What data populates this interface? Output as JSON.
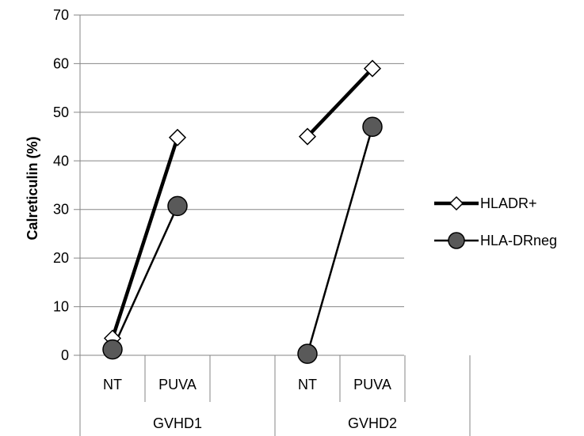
{
  "chart_data": {
    "type": "line",
    "title": "",
    "xlabel": "",
    "ylabel": "Calreticulin (%)",
    "ylim": [
      0,
      70
    ],
    "yticks": [
      0,
      10,
      20,
      30,
      40,
      50,
      60,
      70
    ],
    "grid": true,
    "legend_position": "right",
    "groups": [
      {
        "label": "GVHD1",
        "categories": [
          "NT",
          "PUVA"
        ]
      },
      {
        "label": "GVHD2",
        "categories": [
          "NT",
          "PUVA"
        ]
      }
    ],
    "series": [
      {
        "name": "HLADR+",
        "marker": "diamond",
        "marker_fill": "#ffffff",
        "line_color": "#000000",
        "points": [
          {
            "group": "GVHD1",
            "category": "NT",
            "value": 3.5
          },
          {
            "group": "GVHD1",
            "category": "PUVA",
            "value": 44.8
          },
          {
            "group": "GVHD2",
            "category": "NT",
            "value": 45
          },
          {
            "group": "GVHD2",
            "category": "PUVA",
            "value": 59
          }
        ]
      },
      {
        "name": "HLA-DRneg",
        "marker": "circle",
        "marker_fill": "#595959",
        "line_color": "#000000",
        "points": [
          {
            "group": "GVHD1",
            "category": "NT",
            "value": 1.2
          },
          {
            "group": "GVHD1",
            "category": "PUVA",
            "value": 30.7
          },
          {
            "group": "GVHD2",
            "category": "NT",
            "value": 0.3
          },
          {
            "group": "GVHD2",
            "category": "PUVA",
            "value": 47
          }
        ]
      }
    ]
  }
}
